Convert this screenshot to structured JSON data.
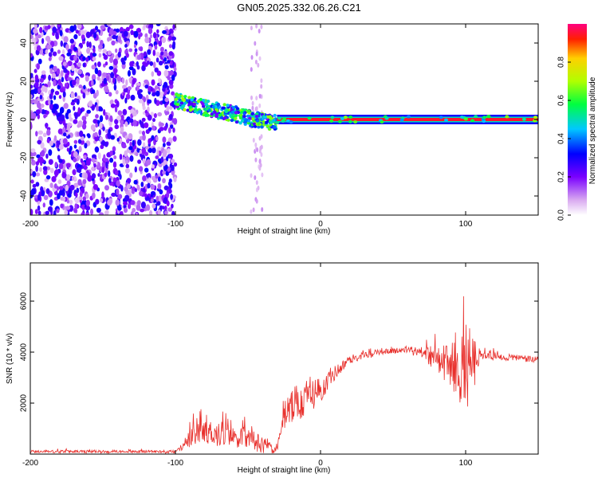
{
  "title": "GN05.2025.332.06.26.C21",
  "chart_data": [
    {
      "type": "heatmap",
      "name": "spectrogram",
      "xlabel": "Height of straight line (km)",
      "ylabel": "Frequency (Hz)",
      "xlim": [
        -200,
        150
      ],
      "ylim": [
        -50,
        50
      ],
      "xticks": [
        -200,
        -100,
        0,
        100
      ],
      "yticks": [
        -40,
        -20,
        0,
        20,
        40
      ],
      "colorbar": {
        "label": "Normalized spectral amplitude",
        "range": [
          0,
          1
        ],
        "ticks": [
          0.0,
          0.2,
          0.4,
          0.6,
          0.8
        ],
        "tick_labels": [
          "0.0",
          "0.2",
          "0.4",
          "0.6",
          "0.8"
        ]
      },
      "features": [
        {
          "description": "broadband noise speckle",
          "x_range": [
            -200,
            -100
          ],
          "freq_range": [
            -50,
            50
          ],
          "amplitude": 0.3
        },
        {
          "description": "faint streak",
          "x_range": [
            -48,
            -40
          ],
          "freq_range": [
            -50,
            50
          ],
          "amplitude": 0.05
        },
        {
          "description": "drifting signal",
          "x": [
            -100,
            -80,
            -60,
            -40,
            -30
          ],
          "freq": [
            10,
            6,
            3,
            -1,
            -2
          ],
          "amplitude": 0.5
        },
        {
          "description": "steady tone",
          "x_range": [
            -30,
            150
          ],
          "freq": 0,
          "amplitude": 0.95
        }
      ]
    },
    {
      "type": "line",
      "name": "snr",
      "xlabel": "Height of straight line (km)",
      "ylabel": "SNR (10 * v/v)",
      "xlim": [
        -200,
        150
      ],
      "ylim": [
        0,
        7500
      ],
      "xticks": [
        -200,
        -100,
        0,
        100
      ],
      "yticks": [
        2000,
        4000,
        6000
      ],
      "color": "#e8302c",
      "envelope": {
        "x": [
          -200,
          -100,
          -90,
          -80,
          -70,
          -60,
          -50,
          -40,
          -30,
          -25,
          -20,
          -10,
          0,
          10,
          20,
          30,
          40,
          50,
          60,
          70,
          80,
          90,
          95,
          100,
          105,
          110,
          120,
          130,
          140,
          150
        ],
        "base": [
          100,
          100,
          600,
          900,
          800,
          700,
          600,
          400,
          200,
          1500,
          1800,
          2200,
          2500,
          3200,
          3700,
          3900,
          4000,
          4050,
          4100,
          4000,
          3700,
          3500,
          3300,
          3500,
          3600,
          3900,
          3850,
          3800,
          3750,
          3700
        ],
        "amp": [
          80,
          80,
          500,
          700,
          700,
          600,
          600,
          500,
          400,
          900,
          1100,
          1000,
          700,
          400,
          250,
          200,
          150,
          150,
          200,
          300,
          800,
          1200,
          1800,
          2600,
          1800,
          250,
          200,
          200,
          200,
          200
        ]
      }
    }
  ]
}
